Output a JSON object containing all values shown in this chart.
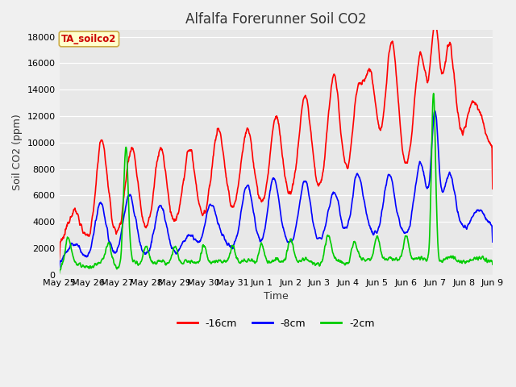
{
  "title": "Alfalfa Forerunner Soil CO2",
  "ylabel": "Soil CO2 (ppm)",
  "xlabel": "Time",
  "legend_label": "TA_soilco2",
  "series_labels": [
    "-16cm",
    "-8cm",
    "-2cm"
  ],
  "series_colors": [
    "#ff0000",
    "#0000ff",
    "#00cc00"
  ],
  "ylim": [
    0,
    18500
  ],
  "yticks": [
    0,
    2000,
    4000,
    6000,
    8000,
    10000,
    12000,
    14000,
    16000,
    18000
  ],
  "xtick_labels": [
    "May 25",
    "May 26",
    "May 27",
    "May 28",
    "May 29",
    "May 30",
    "May 31",
    "Jun 1",
    "Jun 2",
    "Jun 3",
    "Jun 4",
    "Jun 5",
    "Jun 6",
    "Jun 7",
    "Jun 8",
    "Jun 9"
  ],
  "plot_background_color": "#e8e8e8",
  "fig_background_color": "#f0f0f0",
  "legend_box_facecolor": "#ffffcc",
  "legend_box_edgecolor": "#ccaa44",
  "title_fontsize": 12,
  "axis_label_fontsize": 9,
  "tick_fontsize": 8,
  "legend_fontsize": 9,
  "linewidth": 1.2
}
